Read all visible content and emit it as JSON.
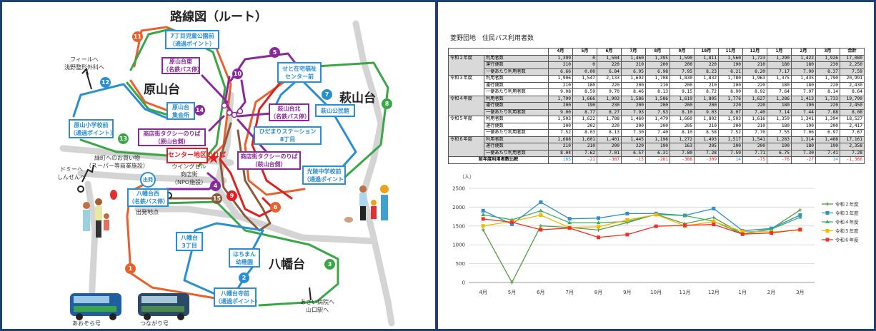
{
  "map": {
    "title": "路線図（ルート）",
    "areas": [
      "原山台",
      "萩山台",
      "八幡台"
    ],
    "labels": [
      {
        "text": [
          "7丁目児童公園前",
          "（通過ポイント）"
        ],
        "kind": "blue"
      },
      {
        "text": [
          "原山台東",
          "（名鉄バス停）"
        ],
        "kind": "purple"
      },
      {
        "text": [
          "原山台",
          "集会所"
        ],
        "kind": "blue"
      },
      {
        "text": [
          "原山小学校前",
          "（通過ポイント）"
        ],
        "kind": "blue"
      },
      {
        "text": [
          "商店街タクシーのりば",
          "（原山台側）"
        ],
        "kind": "purple"
      },
      {
        "text": [
          "センター地区のりば"
        ],
        "kind": "red"
      },
      {
        "text": [
          "八幡台西",
          "（名鉄バス停）"
        ],
        "kind": "blue"
      },
      {
        "text": [
          "せと在宅福祉",
          "センター前"
        ],
        "kind": "blue"
      },
      {
        "text": [
          "萩山公民館"
        ],
        "kind": "blue"
      },
      {
        "text": [
          "萩山台北",
          "（名鉄バス停）"
        ],
        "kind": "purple"
      },
      {
        "text": [
          "ひだまりステーション",
          "8丁目"
        ],
        "kind": "blue"
      },
      {
        "text": [
          "商店街タクシーのりば",
          "（萩山台側）"
        ],
        "kind": "purple"
      },
      {
        "text": [
          "光陵中学校前",
          "（通過ポイント）"
        ],
        "kind": "blue"
      },
      {
        "text": [
          "八幡台",
          "3丁目"
        ],
        "kind": "blue"
      },
      {
        "text": [
          "はちまん",
          "幼稚園"
        ],
        "kind": "blue"
      },
      {
        "text": [
          "八幡台寺前",
          "（通過ポイント）"
        ],
        "kind": "blue"
      }
    ],
    "notes": [
      {
        "text": [
          "フィールへ",
          "浅野整形外科へ"
        ]
      },
      {
        "text": [
          "緑町へのお買い物",
          "（スーパー等商業施設）"
        ]
      },
      {
        "text": [
          "ドミーへ",
          "しんせんへ"
        ]
      },
      {
        "text": [
          "ウイングビル",
          "商店街",
          "（NPO施設）"
        ]
      },
      {
        "text": [
          "出発地点"
        ]
      },
      {
        "text": [
          "あさい病院へ",
          "山口駅へ"
        ]
      },
      {
        "text": [
          "あおぞら号"
        ]
      },
      {
        "text": [
          "つながり号"
        ]
      }
    ],
    "start_badge": "出発",
    "stops": [
      "1",
      "2",
      "3",
      "4",
      "5",
      "6",
      "7",
      "8",
      "9",
      "10",
      "11",
      "12",
      "13",
      "14",
      "15"
    ],
    "colors": {
      "orange": "#e8602c",
      "blue": "#2a8fd0",
      "green": "#3aa646",
      "purple": "#8a2a9a",
      "red": "#e02020",
      "brown": "#8a5a3a"
    }
  },
  "table": {
    "title": "菱野団地　住民バス利用者数",
    "months": [
      "4月",
      "5月",
      "6月",
      "7月",
      "8月",
      "9月",
      "10月",
      "11月",
      "12月",
      "1月",
      "2月",
      "3月",
      "合計"
    ],
    "metrics": [
      "利用者数",
      "運行便数",
      "一便あたり利用者数"
    ],
    "years": [
      {
        "name": "令和２年度",
        "rows": [
          [
            "1,399",
            "0",
            "1,504",
            "1,460",
            "1,395",
            "1,590",
            "1,811",
            "1,560",
            "1,723",
            "1,290",
            "1,422",
            "1,926",
            "17,080"
          ],
          [
            "210",
            "0",
            "220",
            "210",
            "200",
            "200",
            "220",
            "190",
            "210",
            "180",
            "180",
            "230",
            "2,250"
          ],
          [
            "6.66",
            "0.00",
            "6.84",
            "6.95",
            "6.98",
            "7.95",
            "8.23",
            "8.21",
            "8.20",
            "7.17",
            "7.90",
            "8.37",
            "7.59"
          ]
        ]
      },
      {
        "name": "令和３年度",
        "rows": [
          [
            "1,906",
            "1,547",
            "2,133",
            "1,692",
            "1,708",
            "1,830",
            "1,832",
            "1,780",
            "1,963",
            "1,375",
            "1,435",
            "1,790",
            "20,991"
          ],
          [
            "210",
            "180",
            "220",
            "200",
            "210",
            "200",
            "210",
            "200",
            "220",
            "180",
            "180",
            "220",
            "2,430"
          ],
          [
            "9.08",
            "8.59",
            "9.70",
            "8.46",
            "8.13",
            "9.15",
            "8.72",
            "8.90",
            "8.92",
            "7.64",
            "7.97",
            "8.14",
            "8.64"
          ]
        ]
      },
      {
        "name": "令和４年度",
        "rows": [
          [
            "1,799",
            "1,666",
            "1,903",
            "1,586",
            "1,586",
            "1,619",
            "1,805",
            "1,776",
            "1,627",
            "1,286",
            "1,413",
            "1,733",
            "19,799"
          ],
          [
            "200",
            "190",
            "230",
            "200",
            "200",
            "200",
            "200",
            "220",
            "220",
            "180",
            "190",
            "220",
            "2,450"
          ],
          [
            "9.00",
            "8.77",
            "8.27",
            "7.93",
            "7.93",
            "8.10",
            "9.03",
            "8.07",
            "7.40",
            "7.14",
            "7.44",
            "7.88",
            "8.08"
          ]
        ]
      },
      {
        "name": "令和５年度",
        "rows": [
          [
            "1,503",
            "1,622",
            "1,788",
            "1,460",
            "1,479",
            "1,660",
            "1,802",
            "1,503",
            "1,616",
            "1,359",
            "1,341",
            "1,394",
            "18,527"
          ],
          [
            "200",
            "202",
            "220",
            "200",
            "200",
            "205",
            "210",
            "200",
            "210",
            "180",
            "190",
            "200",
            "2,417"
          ],
          [
            "7.52",
            "8.03",
            "8.13",
            "7.30",
            "7.40",
            "8.10",
            "8.58",
            "7.52",
            "7.70",
            "7.55",
            "7.06",
            "6.97",
            "7.67"
          ]
        ]
      },
      {
        "name": "令和６年度",
        "rows": [
          [
            "1,688",
            "1,601",
            "1,401",
            "1,445",
            "1,198",
            "1,272",
            "1,493",
            "1,517",
            "1,541",
            "1,283",
            "1,314",
            "1,408",
            "17,161"
          ],
          [
            "210",
            "210",
            "200",
            "220",
            "190",
            "163",
            "205",
            "200",
            "200",
            "190",
            "180",
            "190",
            "2,358"
          ],
          [
            "8.04",
            "7.62",
            "7.01",
            "6.57",
            "6.31",
            "7.80",
            "7.28",
            "7.59",
            "7.71",
            "6.75",
            "7.30",
            "7.41",
            "7.28"
          ]
        ]
      }
    ],
    "compare_label": "前年度利用者数比較",
    "compare": [
      "185",
      "-21",
      "-387",
      "-15",
      "-281",
      "-388",
      "-309",
      "14",
      "-75",
      "-76",
      "-27",
      "14",
      "-1,366"
    ]
  },
  "chart_data": {
    "type": "line",
    "ylabel": "（人）",
    "categories": [
      "4月",
      "5月",
      "6月",
      "7月",
      "8月",
      "9月",
      "10月",
      "11月",
      "12月",
      "1月",
      "2月",
      "3月"
    ],
    "ylim": [
      0,
      2500
    ],
    "yticks": [
      "0",
      "500",
      "1000",
      "1500",
      "2000",
      "2500"
    ],
    "grid": true,
    "legend": "right",
    "series": [
      {
        "name": "令和２年度",
        "color": "#5a9a40",
        "marker": "plus",
        "values": [
          1399,
          0,
          1504,
          1460,
          1395,
          1590,
          1811,
          1560,
          1723,
          1290,
          1422,
          1926
        ]
      },
      {
        "name": "令和３年度",
        "color": "#2f8fd0",
        "marker": "square",
        "values": [
          1906,
          1547,
          2133,
          1692,
          1708,
          1830,
          1832,
          1780,
          1963,
          1375,
          1435,
          1790
        ]
      },
      {
        "name": "令和４年度",
        "color": "#3cb060",
        "marker": "triangle",
        "values": [
          1799,
          1666,
          1903,
          1586,
          1586,
          1619,
          1805,
          1776,
          1627,
          1286,
          1413,
          1733
        ]
      },
      {
        "name": "令和５年度",
        "color": "#f5b800",
        "marker": "square",
        "values": [
          1503,
          1622,
          1788,
          1460,
          1479,
          1660,
          1802,
          1503,
          1616,
          1359,
          1341,
          1394
        ]
      },
      {
        "name": "令和６年度",
        "color": "#f03020",
        "marker": "square",
        "values": [
          1688,
          1601,
          1401,
          1445,
          1198,
          1272,
          1493,
          1517,
          1541,
          1283,
          1314,
          1408
        ]
      }
    ]
  }
}
